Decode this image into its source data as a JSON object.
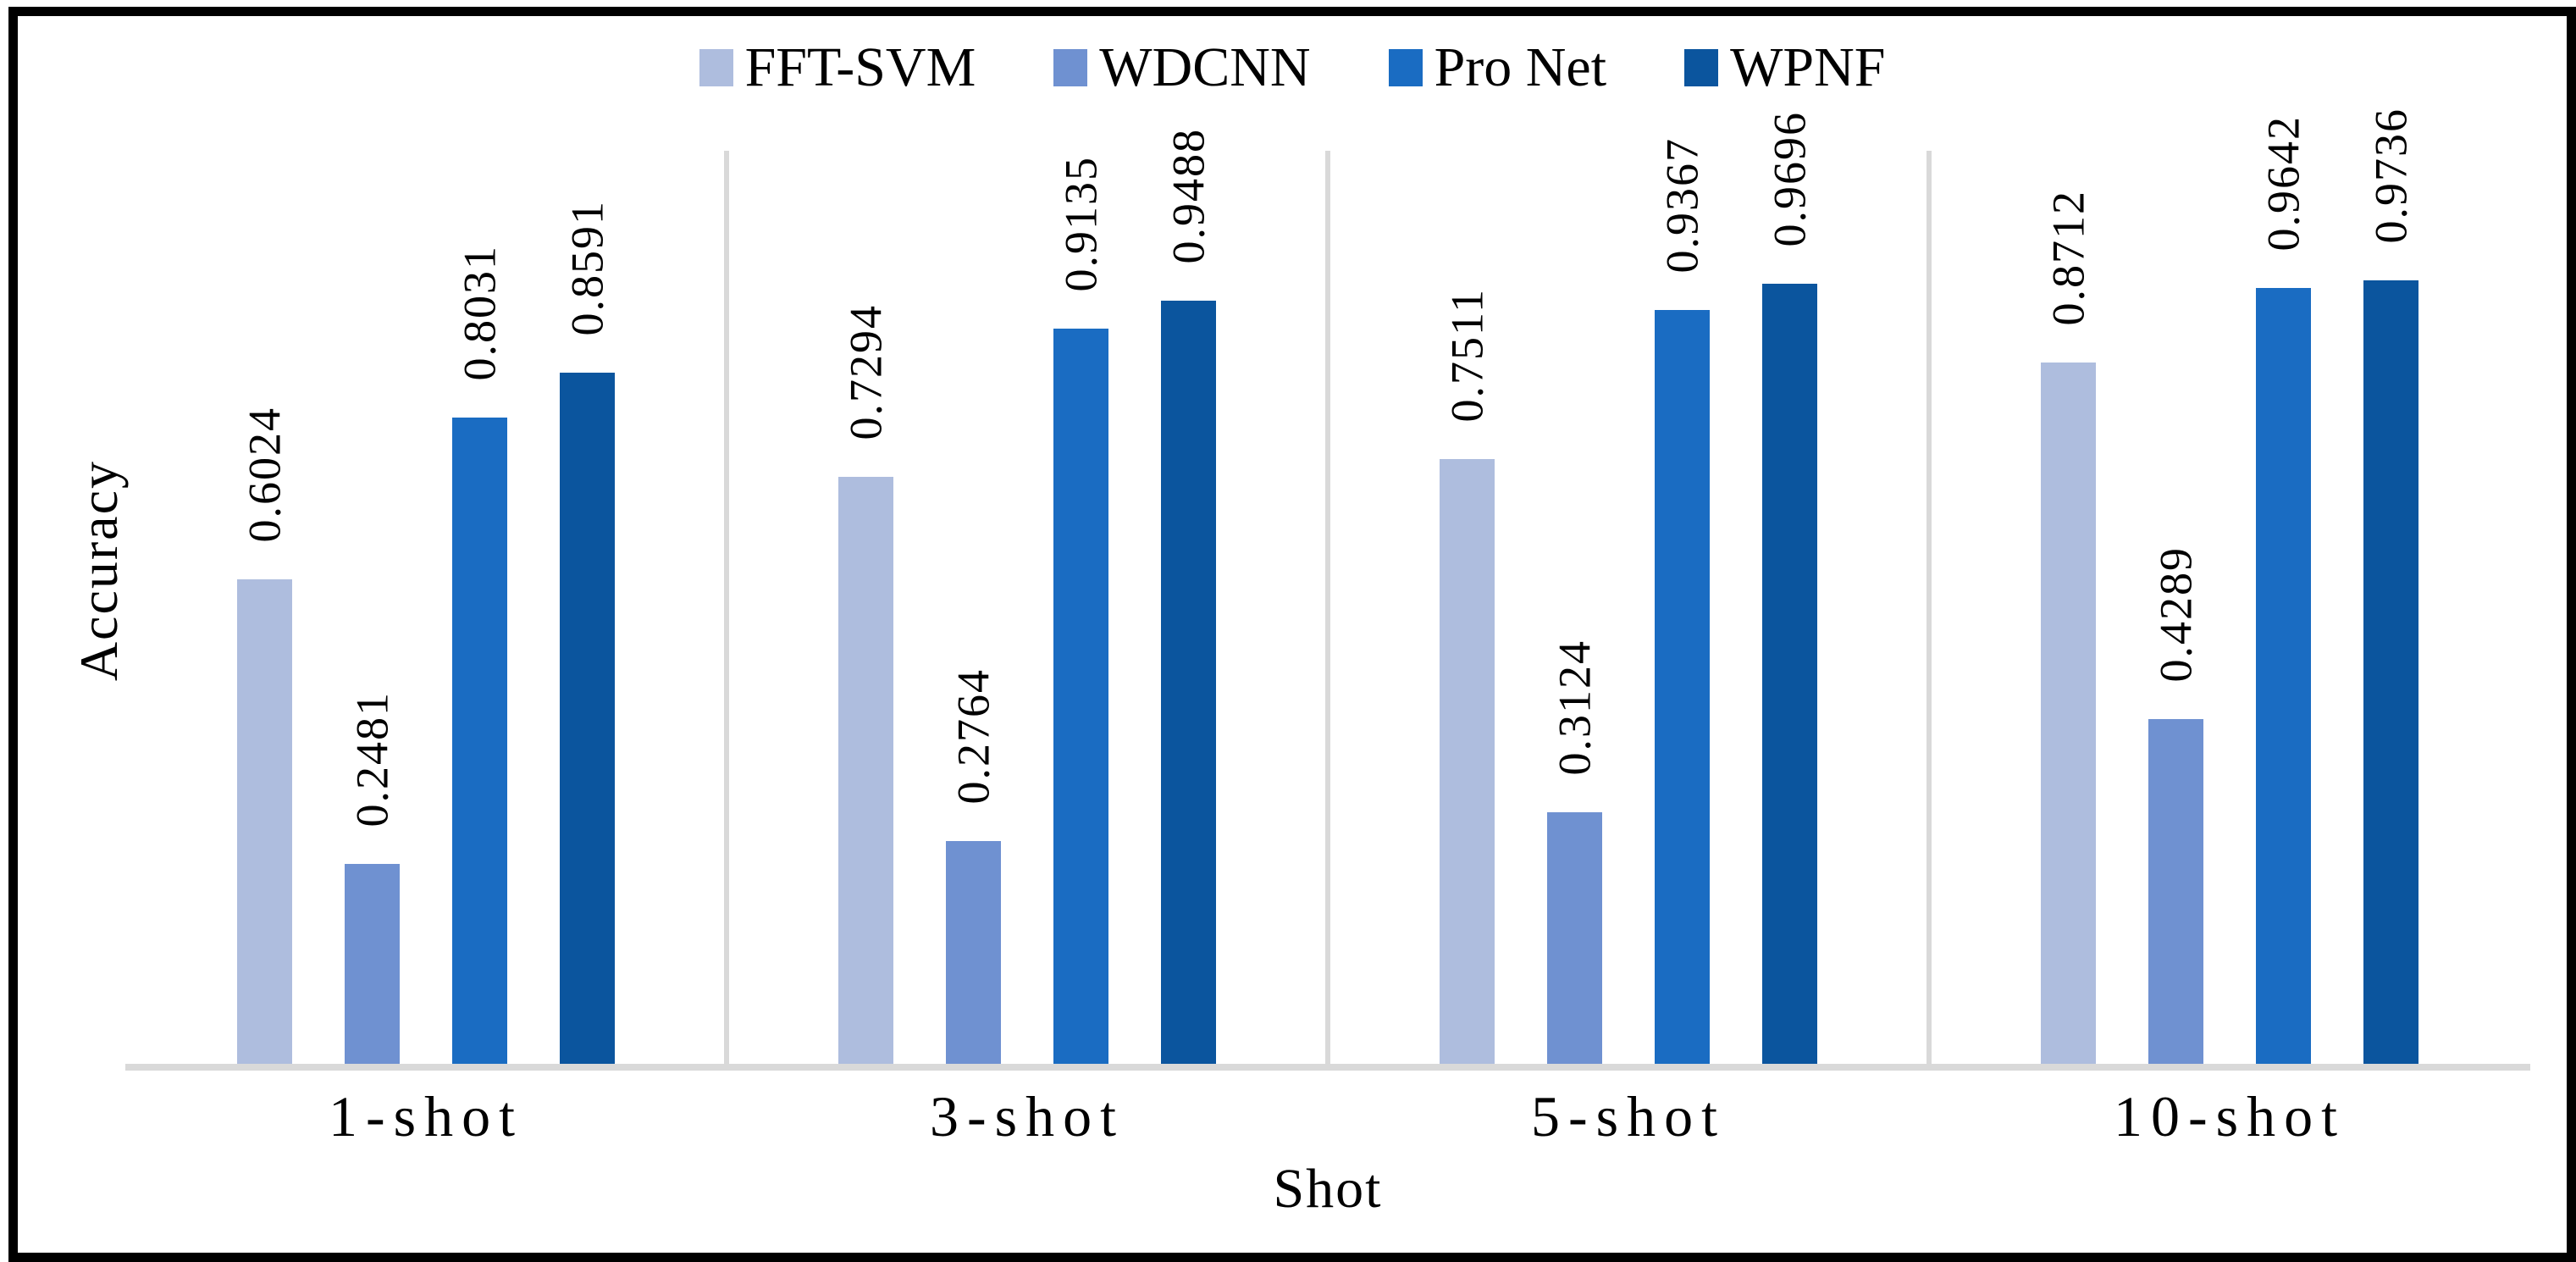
{
  "figure": {
    "background": "#ffffff",
    "border_color": "#000000",
    "axis_line_color": "#d9d9d9",
    "separator_color": "#d9d9d9",
    "text_color": "#000000"
  },
  "chart_data": {
    "type": "bar",
    "title": "",
    "xlabel": "Shot",
    "ylabel": "Accuracy",
    "categories": [
      "1-shot",
      "3-shot",
      "5-shot",
      "10-shot"
    ],
    "series": [
      {
        "name": "FFT-SVM",
        "color": "#aebdde",
        "values": [
          0.6024,
          0.7294,
          0.7511,
          0.8712
        ]
      },
      {
        "name": "WDCNN",
        "color": "#6f91d1",
        "values": [
          0.2481,
          0.2764,
          0.3124,
          0.4289
        ]
      },
      {
        "name": "Pro Net",
        "color": "#1a6cc2",
        "values": [
          0.8031,
          0.9135,
          0.9367,
          0.9642
        ]
      },
      {
        "name": "WPNF",
        "color": "#0b559e",
        "values": [
          0.8591,
          0.9488,
          0.9696,
          0.9736
        ]
      }
    ],
    "ylim": [
      0,
      1.135
    ],
    "value_label_decimals": 4,
    "value_labels": "rotated-90-above-bar",
    "legend_position": "top-center",
    "gridlines": "vertical-category-separators",
    "y_axis_ticks_visible": false
  }
}
